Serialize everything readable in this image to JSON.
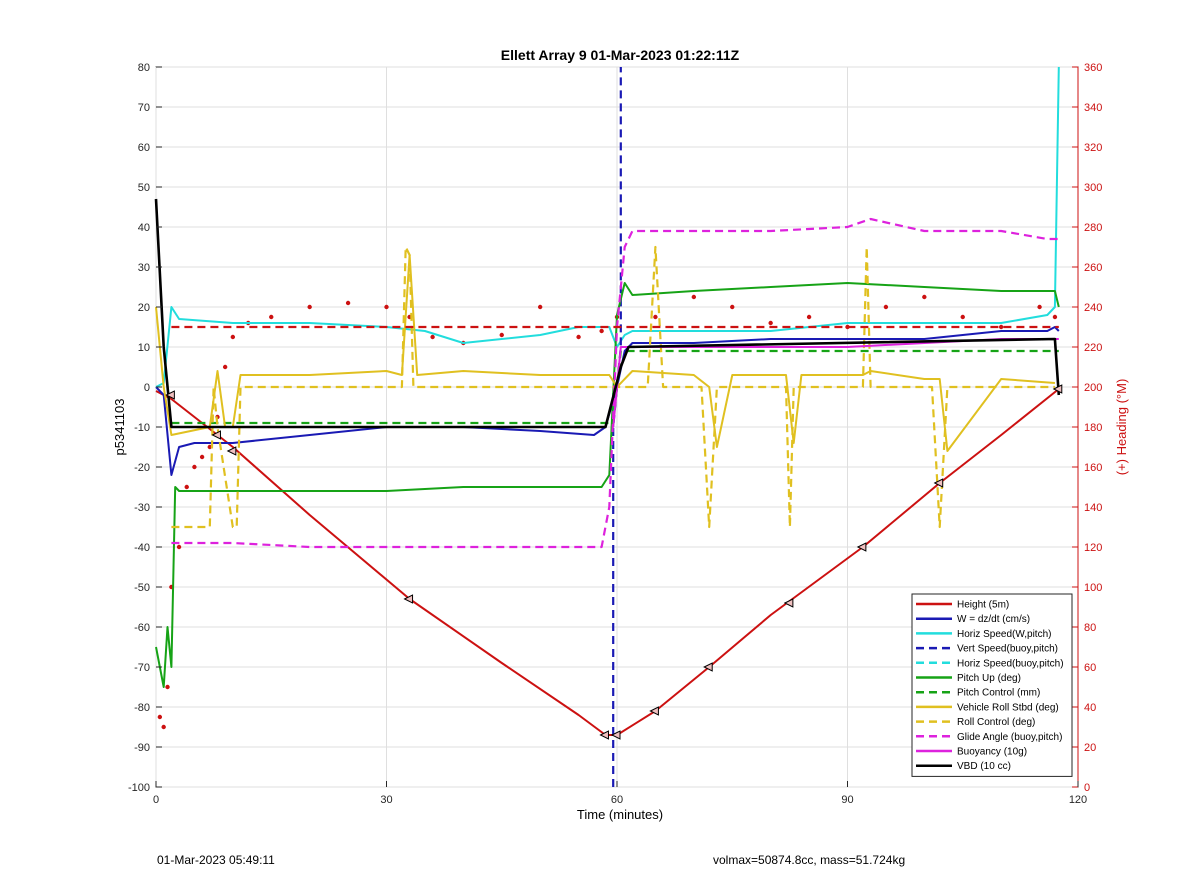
{
  "chart_data": {
    "type": "line",
    "title": "Ellett Array 9 01-Mar-2023 01:22:11Z",
    "xlabel": "Time (minutes)",
    "ylabel": "p5341103",
    "ylabel_right": "(+) Heading (°M)",
    "xlim": [
      0,
      120
    ],
    "ylim": [
      -100,
      80
    ],
    "ylim_right": [
      0,
      360
    ],
    "xticks": [
      0,
      30,
      60,
      90,
      120
    ],
    "yticks": [
      -100,
      -90,
      -80,
      -70,
      -60,
      -50,
      -40,
      -30,
      -20,
      -10,
      0,
      10,
      20,
      30,
      40,
      50,
      60,
      70,
      80
    ],
    "yticks_right": [
      0,
      20,
      40,
      60,
      80,
      100,
      120,
      140,
      160,
      180,
      200,
      220,
      240,
      260,
      280,
      300,
      320,
      340,
      360
    ],
    "grid": true,
    "legend_position": "bottom-right",
    "series": [
      {
        "name": "Height (5m)",
        "color": "#cc1111",
        "dash": "solid",
        "x": [
          0,
          2,
          10,
          20,
          33,
          45,
          55,
          58.5,
          60,
          65,
          72,
          80,
          92,
          102,
          110,
          117.5
        ],
        "y": [
          -1,
          -3,
          -15,
          -32,
          -53,
          -69,
          -82,
          -87,
          -87,
          -81,
          -70,
          -57,
          -40,
          -24,
          -12,
          -0.5
        ]
      },
      {
        "name": "W = dz/dt (cm/s)",
        "color": "#1a1ab4",
        "dash": "solid",
        "x": [
          0,
          1,
          2,
          3,
          5,
          10,
          20,
          30,
          40,
          50,
          57,
          58.5,
          60,
          61,
          62,
          70,
          80,
          90,
          100,
          110,
          116,
          117,
          117.5
        ],
        "y": [
          0,
          -2,
          -22,
          -15,
          -14,
          -14,
          -12,
          -10,
          -10,
          -11,
          -12,
          -10,
          0,
          9,
          11,
          11,
          12,
          12,
          12,
          14,
          14,
          15,
          14
        ]
      },
      {
        "name": "Horiz Speed(W,pitch)",
        "color": "#22dddd",
        "dash": "solid",
        "x": [
          0,
          1,
          2,
          3,
          10,
          20,
          30,
          35,
          40,
          50,
          55,
          59,
          60,
          61,
          62,
          70,
          80,
          90,
          100,
          110,
          116,
          117,
          117.5
        ],
        "y": [
          0,
          1,
          20,
          17,
          16,
          16,
          15,
          14,
          11,
          13,
          15,
          15,
          10,
          13,
          14,
          14,
          14,
          16,
          16,
          16,
          18,
          20,
          80
        ]
      },
      {
        "name": "Vert Speed(buoy,pitch)",
        "color": "#1a1ab4",
        "dash": "dashed",
        "x": [
          59.5,
          59.5,
          60.5,
          60.5
        ],
        "y": [
          -100,
          -10,
          10,
          80
        ]
      },
      {
        "name": "Horiz Speed(buoy,pitch)",
        "color": "#22dddd",
        "dash": "dashed",
        "x": [
          59.5,
          59.5
        ],
        "y": [
          -10,
          0
        ]
      },
      {
        "name": "Pitch Up (deg)",
        "color": "#16a316",
        "dash": "solid",
        "x": [
          0,
          1,
          1.5,
          2,
          2.5,
          3,
          10,
          20,
          30,
          40,
          50,
          58,
          59,
          60,
          61,
          62,
          70,
          80,
          90,
          100,
          110,
          117,
          117.5
        ],
        "y": [
          -65,
          -75,
          -60,
          -70,
          -25,
          -26,
          -26,
          -26,
          -26,
          -25,
          -25,
          -25,
          -22,
          18,
          26,
          23,
          24,
          25,
          26,
          25,
          24,
          24,
          20
        ]
      },
      {
        "name": "Pitch Control (mm)",
        "color": "#16a316",
        "dash": "dashed",
        "x": [
          2,
          59.5,
          60.5,
          117.5
        ],
        "y": [
          -9,
          -9,
          9,
          9
        ]
      },
      {
        "name": "Vehicle Roll Stbd (deg)",
        "color": "#e0c020",
        "dash": "solid",
        "x": [
          0,
          1,
          2,
          7,
          8,
          9,
          10,
          11,
          20,
          30,
          32,
          33,
          34,
          40,
          50,
          59,
          60,
          62,
          70,
          72,
          73,
          75,
          82,
          83,
          84,
          92,
          93,
          100,
          102,
          103,
          110,
          117
        ],
        "y": [
          20,
          0,
          -12,
          -10,
          4,
          -10,
          -10,
          3,
          3,
          4,
          3,
          33,
          3,
          4,
          3,
          3,
          0,
          4,
          3,
          0,
          -15,
          3,
          3,
          -14,
          3,
          3,
          4,
          2,
          2,
          -16,
          2,
          1
        ]
      },
      {
        "name": "Roll Control (deg)",
        "color": "#e0c020",
        "dash": "dashed",
        "x": [
          2,
          7,
          7.5,
          8,
          10,
          10.5,
          11,
          32,
          32.5,
          33,
          33.5,
          34,
          59,
          60,
          64,
          65,
          66,
          71,
          72,
          73,
          82,
          82.5,
          83,
          92,
          92.5,
          93,
          101,
          102,
          103,
          117
        ],
        "y": [
          -35,
          -35,
          0,
          -10,
          -35,
          -35,
          0,
          0,
          35,
          33,
          0,
          0,
          0,
          0,
          0,
          35,
          0,
          0,
          -35,
          0,
          0,
          -35,
          0,
          0,
          35,
          0,
          0,
          -35,
          0,
          0
        ]
      },
      {
        "name": "Glide Angle (buoy,pitch)",
        "color": "#dd22dd",
        "dash": "dashed",
        "x": [
          2,
          10,
          20,
          30,
          40,
          50,
          58,
          59,
          60,
          61,
          62,
          70,
          80,
          90,
          93,
          100,
          110,
          116,
          117.5
        ],
        "y": [
          -39,
          -39,
          -40,
          -40,
          -40,
          -40,
          -40,
          -30,
          15,
          35,
          39,
          39,
          39,
          40,
          42,
          39,
          39,
          37,
          37
        ]
      },
      {
        "name": "Buoyancy (10g)",
        "color": "#dd22dd",
        "dash": "solid",
        "x": [
          59.5,
          60.5,
          70,
          90,
          110,
          117.5
        ],
        "y": [
          -10,
          10,
          10,
          10,
          12,
          12
        ]
      },
      {
        "name": "VBD (10 cc)",
        "color": "#000000",
        "dash": "solid",
        "x": [
          0,
          1,
          2,
          3,
          58.5,
          60.5,
          61.5,
          117,
          117.5
        ],
        "y": [
          47,
          10,
          -10,
          -10,
          -10,
          5,
          10,
          12,
          -2
        ]
      },
      {
        "name": "",
        "color": "#cc1111",
        "dash": "dashed",
        "x": [
          2,
          117.5
        ],
        "y": [
          15,
          15
        ]
      }
    ],
    "heading_points": {
      "name": "",
      "color": "#cc1111",
      "x": [
        0.5,
        1,
        1.5,
        2,
        3,
        4,
        5,
        6,
        7,
        8,
        9,
        10,
        12,
        15,
        20,
        25,
        30,
        33,
        36,
        40,
        45,
        50,
        55,
        58,
        60,
        65,
        70,
        75,
        80,
        85,
        90,
        95,
        100,
        105,
        110,
        115,
        117
      ],
      "y": [
        35,
        30,
        50,
        100,
        120,
        150,
        160,
        165,
        170,
        185,
        210,
        225,
        232,
        235,
        240,
        242,
        240,
        235,
        225,
        222,
        226,
        240,
        225,
        228,
        235,
        235,
        245,
        240,
        232,
        235,
        230,
        240,
        245,
        235,
        230,
        240,
        235
      ]
    },
    "markers": {
      "x": [
        2,
        8,
        10,
        33,
        58.5,
        60,
        65,
        72,
        82.5,
        92,
        102,
        117.5
      ],
      "y": [
        -2,
        -12,
        -16,
        -53,
        -87,
        -87,
        -81,
        -70,
        -54,
        -40,
        -24,
        -0.5
      ]
    },
    "footer_left": "01-Mar-2023 05:49:11",
    "footer_right": "volmax=50874.8cc, mass=51.724kg"
  }
}
